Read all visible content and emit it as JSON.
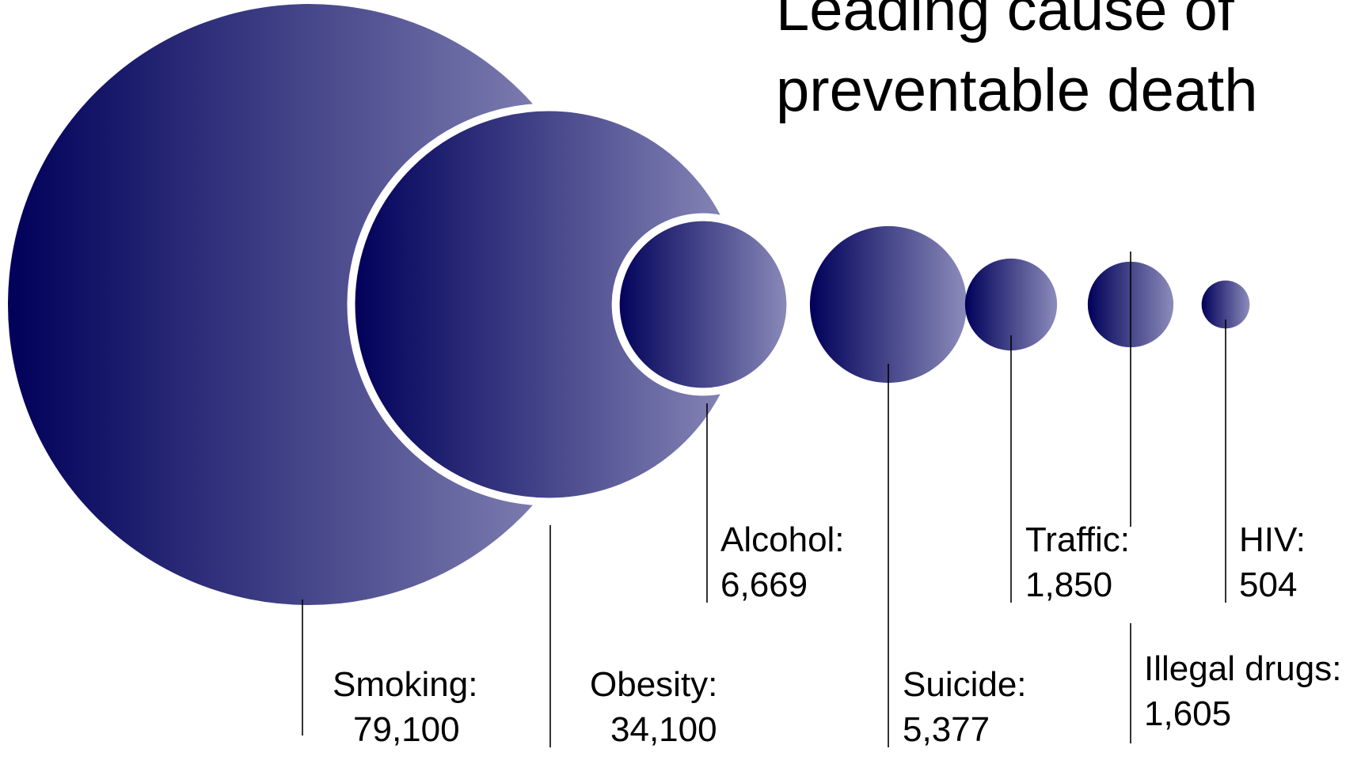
{
  "title_lines": [
    "Leading cause of",
    "preventable death"
  ],
  "colors": {
    "gradient_start": "#00005a",
    "gradient_end": "#8c8cbb",
    "leader": "#000000",
    "outline": "#ffffff"
  },
  "chart_data": {
    "type": "bubble",
    "title": "Leading cause of preventable death",
    "items": [
      {
        "label": "Smoking:",
        "value": 79100,
        "value_text": "79,100"
      },
      {
        "label": "Obesity:",
        "value": 34100,
        "value_text": "34,100"
      },
      {
        "label": "Alcohol:",
        "value": 6669,
        "value_text": "6,669"
      },
      {
        "label": "Suicide:",
        "value": 5377,
        "value_text": "5,377"
      },
      {
        "label": "Traffic:",
        "value": 1850,
        "value_text": "1,850"
      },
      {
        "label": "Illegal drugs:",
        "value": 1605,
        "value_text": "1,605"
      },
      {
        "label": "HIV:",
        "value": 504,
        "value_text": "504"
      }
    ]
  }
}
